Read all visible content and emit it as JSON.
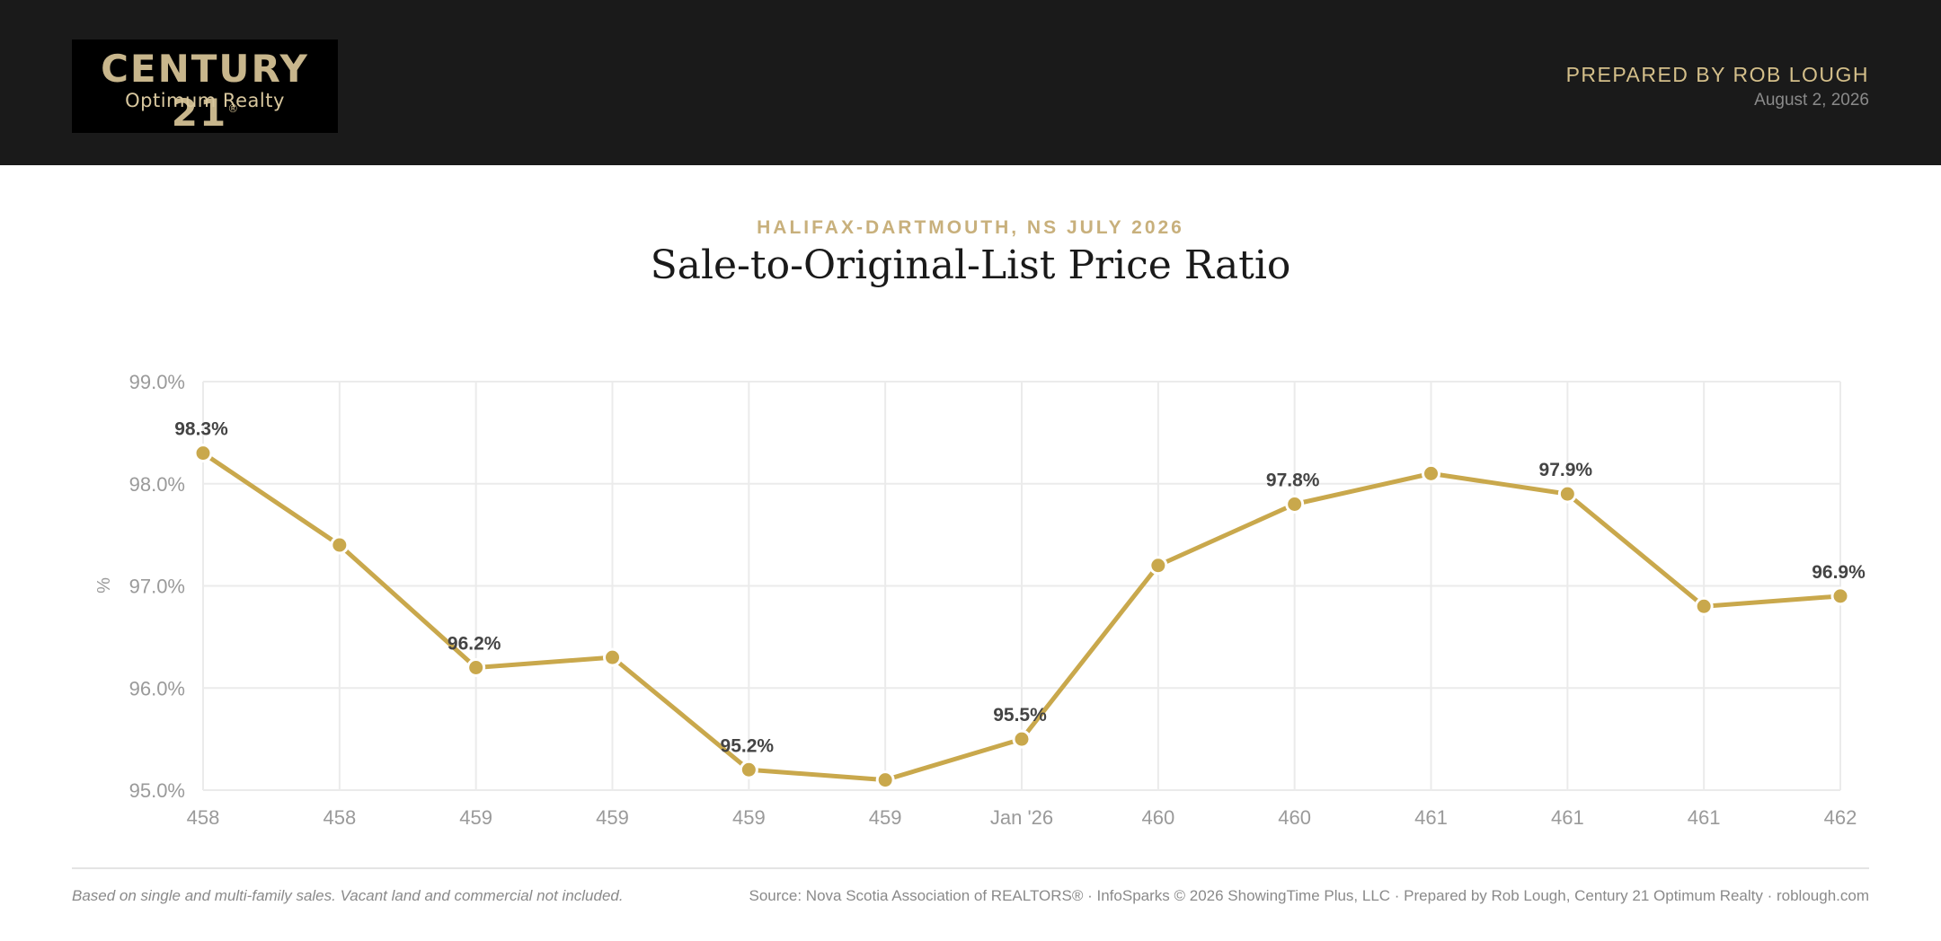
{
  "header": {
    "logo_main": "CENTURY 21",
    "logo_reg": "®",
    "logo_sub": "Optimum Realty",
    "prepared_by": "PREPARED BY ROB LOUGH",
    "date": "August 2, 2026"
  },
  "subtitle": "HALIFAX-DARTMOUTH, NS JULY 2026",
  "title": "Sale-to-Original-List Price Ratio",
  "footer": {
    "note": "Based on single and multi-family sales. Vacant land and commercial not included.",
    "source": "Source: Nova Scotia Association of REALTORS® · InfoSparks © 2026 ShowingTime Plus, LLC · Prepared by Rob Lough, Century 21 Optimum Realty · roblough.com"
  },
  "colors": {
    "line": "#c9a84c",
    "grid": "#ebebeb",
    "tick_text": "#9a9a9a",
    "label_text": "#444444",
    "header_bg": "#1a1a1a",
    "gold": "#d4bf8a"
  },
  "chart_data": {
    "type": "line",
    "title": "Sale-to-Original-List Price Ratio",
    "xlabel": "",
    "ylabel": "%",
    "ylim": [
      95.0,
      99.0
    ],
    "yticks": [
      99.0,
      98.0,
      97.0,
      96.0,
      95.0
    ],
    "ytick_labels": [
      "99.0%",
      "98.0%",
      "97.0%",
      "96.0%",
      "95.0%"
    ],
    "categories": [
      "458",
      "458",
      "459",
      "459",
      "459",
      "459",
      "Jan '26",
      "460",
      "460",
      "461",
      "461",
      "461",
      "462"
    ],
    "grid": true,
    "legend": "none",
    "series": [
      {
        "values": [
          98.3,
          97.4,
          96.2,
          96.3,
          95.2,
          95.1,
          95.5,
          97.2,
          97.8,
          98.1,
          97.9,
          96.8,
          96.9
        ]
      }
    ],
    "data_labels": [
      {
        "index": 0,
        "text": "98.3%"
      },
      {
        "index": 2,
        "text": "96.2%"
      },
      {
        "index": 4,
        "text": "95.2%"
      },
      {
        "index": 6,
        "text": "95.5%"
      },
      {
        "index": 8,
        "text": "97.8%"
      },
      {
        "index": 10,
        "text": "97.9%"
      },
      {
        "index": 12,
        "text": "96.9%"
      }
    ]
  }
}
